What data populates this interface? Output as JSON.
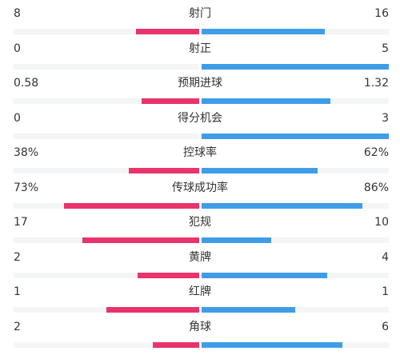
{
  "colors": {
    "home": "#e9346b",
    "away": "#3f9de8",
    "track": "#f4f5f7"
  },
  "stats": [
    {
      "label": "射门",
      "left": "8",
      "right": "16",
      "left_share": 0.34,
      "right_share": 0.66
    },
    {
      "label": "射正",
      "left": "0",
      "right": "5",
      "left_share": 0.0,
      "right_share": 1.0
    },
    {
      "label": "预期进球",
      "left": "0.58",
      "right": "1.32",
      "left_share": 0.31,
      "right_share": 0.69
    },
    {
      "label": "得分机会",
      "left": "0",
      "right": "3",
      "left_share": 0.0,
      "right_share": 1.0
    },
    {
      "label": "控球率",
      "left": "38%",
      "right": "62%",
      "left_share": 0.38,
      "right_share": 0.62
    },
    {
      "label": "传球成功率",
      "left": "73%",
      "right": "86%",
      "left_share": 0.73,
      "right_share": 0.86
    },
    {
      "label": "犯规",
      "left": "17",
      "right": "10",
      "left_share": 0.63,
      "right_share": 0.37
    },
    {
      "label": "黄牌",
      "left": "2",
      "right": "4",
      "left_share": 0.33,
      "right_share": 0.67
    },
    {
      "label": "红牌",
      "left": "1",
      "right": "1",
      "left_share": 0.5,
      "right_share": 0.5
    },
    {
      "label": "角球",
      "left": "2",
      "right": "6",
      "left_share": 0.25,
      "right_share": 0.75
    }
  ]
}
